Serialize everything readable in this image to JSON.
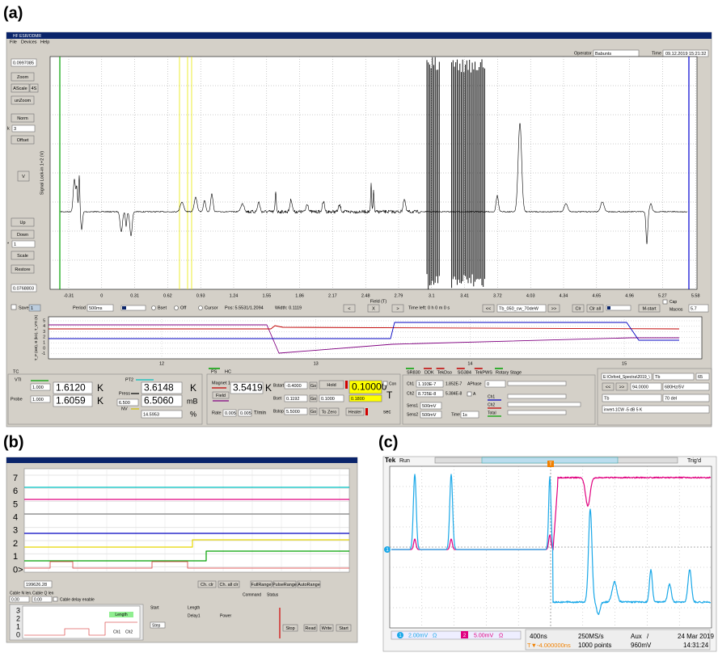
{
  "labels": {
    "a": "(a)",
    "b": "(b)",
    "c": "(c)"
  },
  "a": {
    "title": "HF ESR/ODMR",
    "menu": [
      "File",
      "Devices",
      "Help"
    ],
    "operator_label": "Operator",
    "operator": "Babunts",
    "time_label": "Time",
    "date": "09.12.2019",
    "clock": "15:21:32",
    "left": {
      "top": "0.0997085",
      "zoom": "Zoom",
      "ascale": "AScale",
      "as": "4S",
      "unzoom": "unZoom",
      "norm": "Norm",
      "k_label": "k",
      "k": "3",
      "offset": "Offset",
      "v": "V",
      "up": "Up",
      "down": "Down",
      "mul_label": "*",
      "mul": "1",
      "scale": "Scale",
      "restore": "Restore",
      "bottom": "0.0768803"
    },
    "ylabel": "Signal Lock-in 1+2 (V)",
    "xticks": [
      "-0.31",
      "0",
      "0.31",
      "0.62",
      "0.93",
      "1.24",
      "1.55",
      "1.86",
      "2.17",
      "2.48",
      "2.79",
      "3.1",
      "3.41",
      "3.72",
      "4.03",
      "4.34",
      "4.65",
      "4.96",
      "5.27",
      "5.58"
    ],
    "xlabel": "Field (T)",
    "bar": {
      "save": "Save",
      "count": "1",
      "period_label": "Period",
      "period": "500ms",
      "bset": "Bset",
      "off": "Off",
      "cursor": "Cursor",
      "pos": "Pos: 5.5531/1.2094",
      "width": "Width: 0.1119",
      "prev": "<",
      "x": "X",
      "next": ">",
      "time_left": "Time left: 0 h 0 m 0 s",
      "back": "<<",
      "file": "Tb_050_cw_70deW",
      "fwd": ">>",
      "clr": "Clr",
      "clr_all": "Clr all",
      "mstart": "M-start",
      "cap": "Cap",
      "macros": "Macros",
      "macro_val": "5.7"
    },
    "monitor": {
      "ylabel": "T_P (mB), B (kG), T_VTI (K)",
      "yticks": [
        "5",
        "4",
        "3",
        "2",
        "1",
        "0",
        "-1"
      ],
      "xticks": [
        "12",
        "13",
        "14",
        "15"
      ]
    },
    "tc": {
      "tab": "TC",
      "vti": "VTI",
      "vti_set": "1.000",
      "vti_val": "1.6120",
      "vti_unit": "K",
      "pt2": "PT2",
      "pt2_val": "3.6148",
      "pt2_unit": "K",
      "probe": "Probe",
      "probe_set": "1.000",
      "probe_val": "1.6059",
      "probe_unit": "K",
      "press": "Press",
      "press_set": "6.500",
      "press_val": "6.5060",
      "press_unit": "mB",
      "nv": "NV",
      "nv_val": "14.5953",
      "nv_unit": "%"
    },
    "ps": {
      "tab_ps": "PS",
      "tab_hc": "HC",
      "magnet": "Magnet 1",
      "magnet_val": "3.5419",
      "magnet_unit": "K",
      "field": "Field",
      "bstart": "Bstart",
      "bstart_val": "-0.4000",
      "bset": "Bset",
      "bset_val": "0.1192",
      "bset_target": "0.1000",
      "bstop": "Bstop",
      "bstop_val": "5.5000",
      "go": "Go",
      "hold": "Hold",
      "big": "0.10000",
      "cont": "Con",
      "unit": "T",
      "small": "0.1800",
      "to_zero": "To Zero",
      "heater": "Heater",
      "sec": "sec",
      "rate": "Rate",
      "rate1": "0.005",
      "rate2": "0.005",
      "rate_unit": "T/min"
    },
    "lockin": {
      "tabs": [
        "SR830",
        "DDK",
        "TekDso",
        "SG384",
        "TekPWS",
        "Rotary Stage"
      ],
      "ch1": "Ch1",
      "ch1_x": "1.193E-7",
      "ch1_y": "1.852E-7",
      "aphase": "APhase",
      "aphase_val": "0",
      "ch2": "Ch2",
      "ch2_x": "8.725E-8",
      "ch2_y": "5.384E-8",
      "a": "A",
      "leg_ch1": "Ch1",
      "leg_ch2": "Ch2",
      "total": "Total",
      "sens1": "Sens1",
      "sens1_val": "500mV",
      "sens2": "Sens2",
      "sens2_val": "500mV",
      "time": "Time",
      "time_val": "1s"
    },
    "files": {
      "path": "E:\\Oxford_Spectra\\2019_\\",
      "name": "Tb",
      "num": "65",
      "back": "<<",
      "fwd": ">>",
      "value": "94.0000",
      "mod": "680Hz/5V",
      "name2": "Tb",
      "note": "70 del",
      "comment": "invert-1CW -5 dB 5 K"
    }
  },
  "b": {
    "yticks": [
      "7",
      "6",
      "5",
      "4",
      "3",
      "2",
      "1",
      "0>"
    ],
    "offset": "199626.28",
    "ch_clr": "Ch. clr",
    "ch_all": "Ch. all clr",
    "full": "FullRange",
    "pulse": "PulseRange",
    "auto": "AutoRange",
    "cable_n": "Cable N len.",
    "cable_q": "Cable Q len",
    "cable_n_val": "0.00",
    "cable_q_val": "0.00",
    "delay": "Cable delay enable",
    "levels": [
      "3",
      "2",
      "1",
      "0"
    ],
    "length": "Length",
    "ch1": "Ch1",
    "ch2": "Ch2",
    "start_label": "Start",
    "length_label": "Length",
    "delay1": "Delay1",
    "power": "Power",
    "step": "Step",
    "command": "Command",
    "status": "Status",
    "stop": "Stop",
    "read": "Read",
    "write": "Write",
    "start": "Start"
  },
  "c": {
    "brand": "Tek",
    "state": "Run",
    "trig": "Trig'd",
    "marker": "1",
    "t_marker": "T",
    "ch1": "1",
    "ch1_scale": "2.00mV",
    "ch1_cpl": "Ω",
    "ch2": "2",
    "ch2_scale": "5.00mV",
    "ch2_cpl": "Ω",
    "timebase": "400ns",
    "rate": "250MS/s",
    "trigger_src": "Aux",
    "slope": "/",
    "date": "24 Mar 2019",
    "trig_pos": "T▼-4.000000ns",
    "points": "1000 points",
    "level": "960mV",
    "clock": "14:31:24"
  }
}
